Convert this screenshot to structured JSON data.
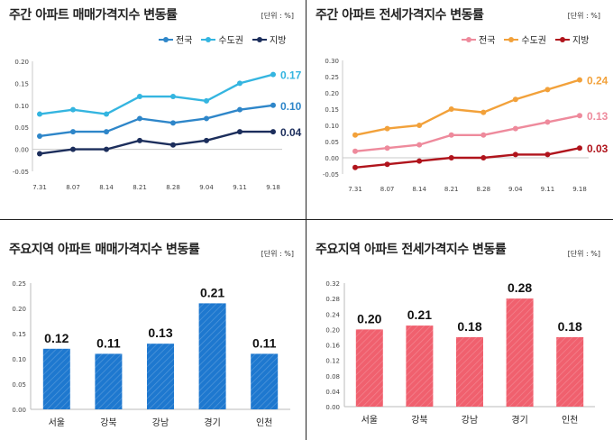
{
  "chart_data": [
    {
      "type": "line",
      "title": "주간 아파트 매매가격지수 변동률",
      "unit": "[단위 : %]",
      "categories": [
        "7.31",
        "8.07",
        "8.14",
        "8.21",
        "8.28",
        "9.04",
        "9.11",
        "9.18"
      ],
      "ylim": [
        -0.05,
        0.2
      ],
      "yticks": [
        "-0.05",
        "0.00",
        "0.05",
        "0.10",
        "0.15",
        "0.20"
      ],
      "series": [
        {
          "name": "전국",
          "color": "#2e86c9",
          "values": [
            0.03,
            0.04,
            0.04,
            0.07,
            0.06,
            0.07,
            0.09,
            0.1
          ],
          "end_label": "0.10"
        },
        {
          "name": "수도권",
          "color": "#34b5e0",
          "values": [
            0.08,
            0.09,
            0.08,
            0.12,
            0.12,
            0.11,
            0.15,
            0.17
          ],
          "end_label": "0.17"
        },
        {
          "name": "지방",
          "color": "#1c2e5c",
          "values": [
            -0.01,
            0.0,
            0.0,
            0.02,
            0.01,
            0.02,
            0.04,
            0.04
          ],
          "end_label": "0.04"
        }
      ],
      "legend": "top-right",
      "grid": false
    },
    {
      "type": "line",
      "title": "주간 아파트 전세가격지수 변동률",
      "unit": "[단위 : %]",
      "categories": [
        "7.31",
        "8.07",
        "8.14",
        "8.21",
        "8.28",
        "9.04",
        "9.11",
        "9.18"
      ],
      "ylim": [
        -0.05,
        0.3
      ],
      "yticks": [
        "-0.05",
        "0.00",
        "0.05",
        "0.10",
        "0.15",
        "0.20",
        "0.25",
        "0.30"
      ],
      "series": [
        {
          "name": "전국",
          "color": "#ee8a9c",
          "values": [
            0.02,
            0.03,
            0.04,
            0.07,
            0.07,
            0.09,
            0.11,
            0.13
          ],
          "end_label": "0.13"
        },
        {
          "name": "수도권",
          "color": "#f2a13a",
          "values": [
            0.07,
            0.09,
            0.1,
            0.15,
            0.14,
            0.18,
            0.21,
            0.24
          ],
          "end_label": "0.24"
        },
        {
          "name": "지방",
          "color": "#b0141c",
          "values": [
            -0.03,
            -0.02,
            -0.01,
            0.0,
            0.0,
            0.01,
            0.01,
            0.03
          ],
          "end_label": "0.03"
        }
      ],
      "legend": "top-right",
      "grid": false
    },
    {
      "type": "bar",
      "title": "주요지역 아파트 매매가격지수 변동률",
      "unit": "[단위 : %]",
      "categories": [
        "서울",
        "강북",
        "강남",
        "경기",
        "인천"
      ],
      "values": [
        0.12,
        0.11,
        0.13,
        0.21,
        0.11
      ],
      "data_labels": [
        "0.12",
        "0.11",
        "0.13",
        "0.21",
        "0.11"
      ],
      "ylim": [
        0,
        0.25
      ],
      "yticks": [
        "0.00",
        "0.05",
        "0.10",
        "0.15",
        "0.20",
        "0.25"
      ],
      "color": "#1e78cf",
      "grid": false
    },
    {
      "type": "bar",
      "title": "주요지역 아파트 전세가격지수 변동률",
      "unit": "[단위 : %]",
      "categories": [
        "서울",
        "강북",
        "강남",
        "경기",
        "인천"
      ],
      "values": [
        0.2,
        0.21,
        0.18,
        0.28,
        0.18
      ],
      "data_labels": [
        "0.20",
        "0.21",
        "0.18",
        "0.28",
        "0.18"
      ],
      "ylim": [
        0,
        0.32
      ],
      "yticks": [
        "0.00",
        "0.04",
        "0.08",
        "0.12",
        "0.16",
        "0.20",
        "0.24",
        "0.28",
        "0.32"
      ],
      "color": "#f0606e",
      "grid": false
    }
  ]
}
